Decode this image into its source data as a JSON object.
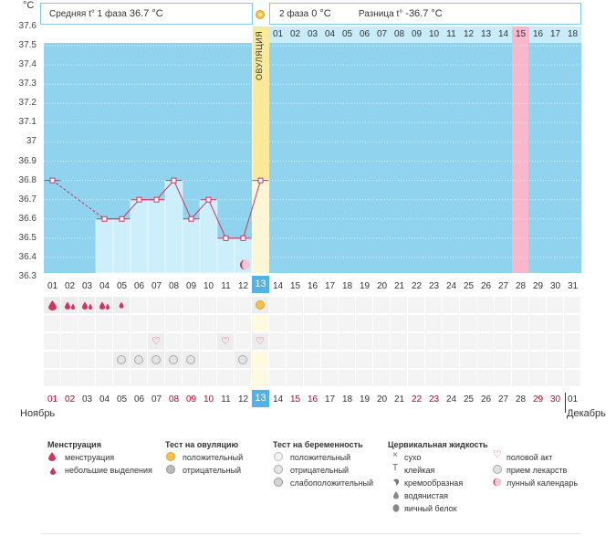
{
  "units": {
    "celsius": "°C"
  },
  "y_ticks": [
    "37.6",
    "37.5",
    "37.4",
    "37.3",
    "37.2",
    "37.1",
    "37",
    "36.9",
    "36.8",
    "36.7",
    "36.6",
    "36.5",
    "36.4",
    "36.3"
  ],
  "header": {
    "phase1_label": "Средняя t° 1 фаза",
    "phase1_value": "36.7 °C",
    "phase2_label": "2 фаза",
    "phase2_value": "0 °C",
    "diff_label": "Разница t°",
    "diff_value": "-36.7 °C"
  },
  "ovulation_label": "ОВУЛЯЦИЯ",
  "ovulation_day": 13,
  "cycle_days_after": [
    "01",
    "02",
    "03",
    "04",
    "05",
    "06",
    "07",
    "08",
    "09",
    "10",
    "11",
    "12",
    "13",
    "14",
    "15",
    "16",
    "17",
    "18"
  ],
  "highlighted_cycle_day": "15",
  "day_row_top": [
    "01",
    "02",
    "03",
    "04",
    "05",
    "06",
    "07",
    "08",
    "09",
    "10",
    "11",
    "12",
    "13",
    "14",
    "15",
    "16",
    "17",
    "18",
    "19",
    "20",
    "21",
    "22",
    "23",
    "24",
    "25",
    "26",
    "27",
    "28",
    "29",
    "30",
    "31"
  ],
  "day_row_bottom": [
    "01",
    "02",
    "03",
    "04",
    "05",
    "06",
    "07",
    "08",
    "09",
    "10",
    "11",
    "12",
    "13",
    "14",
    "15",
    "16",
    "17",
    "18",
    "19",
    "20",
    "21",
    "22",
    "23",
    "24",
    "25",
    "26",
    "27",
    "28",
    "29",
    "30",
    "01"
  ],
  "bottom_red_days": [
    1,
    2,
    8,
    9,
    10,
    15,
    16,
    22,
    23,
    29,
    30
  ],
  "month_left": "Ноябрь",
  "month_right": "Декабрь",
  "chart_data": {
    "type": "line",
    "title": "",
    "ylabel": "°C",
    "ylim": [
      36.3,
      37.6
    ],
    "x": [
      1,
      2,
      3,
      4,
      5,
      6,
      7,
      8,
      9,
      10,
      11,
      12,
      13
    ],
    "temps": [
      36.8,
      null,
      null,
      36.6,
      36.6,
      36.7,
      36.7,
      36.8,
      36.6,
      36.7,
      36.5,
      36.5,
      36.8
    ],
    "dashed_segment": [
      1,
      4
    ]
  },
  "markers": {
    "menstruation_days": [
      1,
      2,
      3,
      4
    ],
    "light_spotting_days": [
      5
    ],
    "ovulation_test_positive_days": [
      13
    ],
    "sex_days": [
      7,
      11,
      13
    ],
    "pill_days": [
      5,
      6,
      7,
      8,
      9,
      12
    ],
    "lunar_day": 12
  },
  "legend": {
    "menstruation": {
      "title": "Менструация",
      "items": [
        "менструация",
        "небольшие выделения"
      ]
    },
    "ovulation_test": {
      "title": "Тест на овуляцию",
      "items": [
        "положительный",
        "отрицательный"
      ]
    },
    "pregnancy_test": {
      "title": "Тест на беременность",
      "items": [
        "положительный",
        "отрицательный",
        "слабоположительный"
      ]
    },
    "cervical": {
      "title": "Цервикальная жидкость",
      "items": [
        "сухо",
        "клейкая",
        "кремообразная",
        "водянистая",
        "яичный белок"
      ]
    },
    "other": {
      "items": [
        "половой акт",
        "прием лекарств",
        "лунный календарь"
      ]
    }
  },
  "colors": {
    "chart_bg": "#8fd3ef",
    "bar_fill": "#cdeefb",
    "ovulation_band": "#fbe99a",
    "highlight_day": "#f8b7cb",
    "line": "#d0355c",
    "accent_blue": "#52b2e3"
  }
}
